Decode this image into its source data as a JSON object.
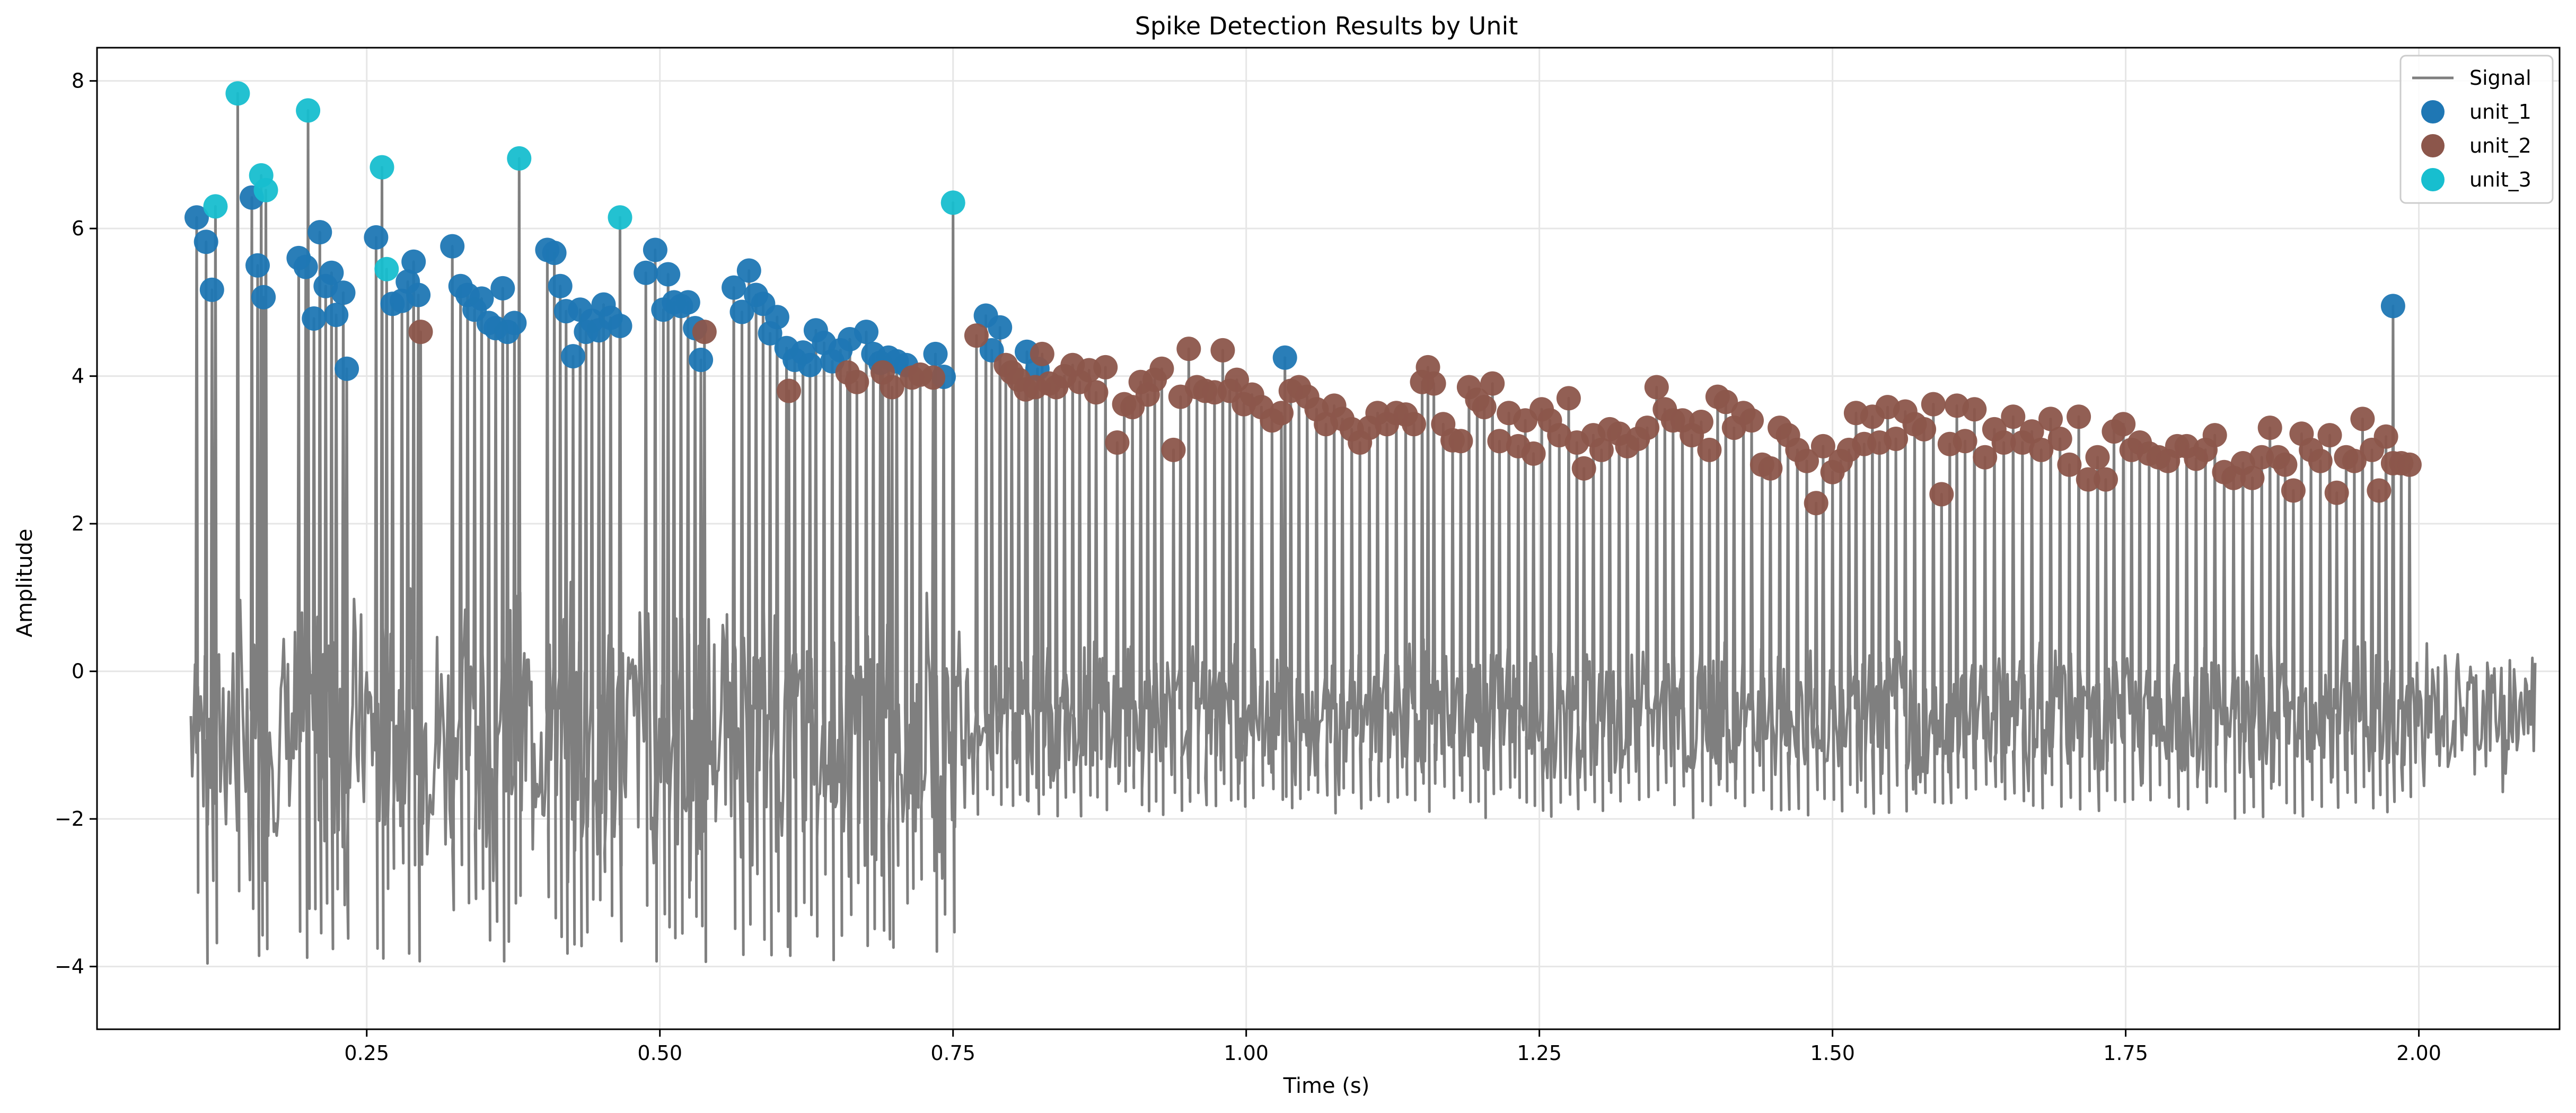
{
  "chart_data": {
    "type": "scatter",
    "title": "Spike Detection Results by Unit",
    "xlabel": "Time (s)",
    "ylabel": "Amplitude",
    "xlim": [
      0.02,
      2.12
    ],
    "ylim": [
      -4.85,
      8.45
    ],
    "xticks": [
      0.25,
      0.5,
      0.75,
      1.0,
      1.25,
      1.5,
      1.75,
      2.0
    ],
    "xtick_labels": [
      "0.25",
      "0.50",
      "0.75",
      "1.00",
      "1.25",
      "1.50",
      "1.75",
      "2.00"
    ],
    "yticks": [
      -4,
      -2,
      0,
      2,
      4,
      6,
      8
    ],
    "ytick_labels": [
      "−4",
      "−2",
      "0",
      "2",
      "4",
      "6",
      "8"
    ],
    "grid": true,
    "legend_position": "top-right",
    "colors": {
      "signal": "#7f7f7f",
      "unit_1": "#1f77b4",
      "unit_2": "#8c564b",
      "unit_3": "#17becf",
      "grid": "#e6e6e6"
    },
    "legend": [
      {
        "label": "Signal",
        "kind": "line",
        "color": "#7f7f7f"
      },
      {
        "label": "unit_1",
        "kind": "marker",
        "color": "#1f77b4"
      },
      {
        "label": "unit_2",
        "kind": "marker",
        "color": "#8c564b"
      },
      {
        "label": "unit_3",
        "kind": "marker",
        "color": "#17becf"
      }
    ],
    "signal": {
      "name": "Signal",
      "x_start": 0.1,
      "x_end": 2.1,
      "baseline_min": -4.2,
      "baseline_max": 1.7
    },
    "series": [
      {
        "name": "unit_1",
        "color": "#1f77b4",
        "points": [
          [
            0.105,
            6.15
          ],
          [
            0.113,
            5.82
          ],
          [
            0.118,
            5.17
          ],
          [
            0.152,
            6.42
          ],
          [
            0.157,
            5.5
          ],
          [
            0.162,
            5.07
          ],
          [
            0.192,
            5.6
          ],
          [
            0.198,
            5.48
          ],
          [
            0.205,
            4.78
          ],
          [
            0.21,
            5.95
          ],
          [
            0.215,
            5.22
          ],
          [
            0.22,
            5.4
          ],
          [
            0.224,
            4.83
          ],
          [
            0.23,
            5.13
          ],
          [
            0.233,
            4.1
          ],
          [
            0.258,
            5.88
          ],
          [
            0.272,
            4.98
          ],
          [
            0.28,
            5.02
          ],
          [
            0.285,
            5.28
          ],
          [
            0.29,
            5.55
          ],
          [
            0.294,
            5.1
          ],
          [
            0.323,
            5.76
          ],
          [
            0.33,
            5.22
          ],
          [
            0.336,
            5.1
          ],
          [
            0.342,
            4.9
          ],
          [
            0.348,
            5.05
          ],
          [
            0.354,
            4.72
          ],
          [
            0.36,
            4.65
          ],
          [
            0.366,
            5.19
          ],
          [
            0.37,
            4.6
          ],
          [
            0.376,
            4.72
          ],
          [
            0.404,
            5.71
          ],
          [
            0.41,
            5.67
          ],
          [
            0.415,
            5.22
          ],
          [
            0.42,
            4.88
          ],
          [
            0.426,
            4.27
          ],
          [
            0.432,
            4.9
          ],
          [
            0.437,
            4.6
          ],
          [
            0.442,
            4.75
          ],
          [
            0.448,
            4.62
          ],
          [
            0.452,
            4.97
          ],
          [
            0.458,
            4.79
          ],
          [
            0.466,
            4.68
          ],
          [
            0.488,
            5.4
          ],
          [
            0.496,
            5.71
          ],
          [
            0.503,
            4.9
          ],
          [
            0.507,
            5.38
          ],
          [
            0.512,
            5.0
          ],
          [
            0.518,
            4.95
          ],
          [
            0.524,
            5.0
          ],
          [
            0.53,
            4.65
          ],
          [
            0.535,
            4.22
          ],
          [
            0.563,
            5.2
          ],
          [
            0.57,
            4.87
          ],
          [
            0.576,
            5.43
          ],
          [
            0.582,
            5.1
          ],
          [
            0.588,
            4.98
          ],
          [
            0.594,
            4.58
          ],
          [
            0.6,
            4.8
          ],
          [
            0.608,
            4.38
          ],
          [
            0.615,
            4.22
          ],
          [
            0.622,
            4.32
          ],
          [
            0.628,
            4.15
          ],
          [
            0.633,
            4.62
          ],
          [
            0.64,
            4.45
          ],
          [
            0.647,
            4.2
          ],
          [
            0.654,
            4.35
          ],
          [
            0.662,
            4.5
          ],
          [
            0.676,
            4.6
          ],
          [
            0.682,
            4.3
          ],
          [
            0.688,
            4.18
          ],
          [
            0.695,
            4.25
          ],
          [
            0.702,
            4.2
          ],
          [
            0.71,
            4.15
          ],
          [
            0.735,
            4.3
          ],
          [
            0.742,
            3.99
          ],
          [
            0.778,
            4.82
          ],
          [
            0.783,
            4.35
          ],
          [
            0.79,
            4.66
          ],
          [
            0.813,
            4.33
          ],
          [
            0.822,
            4.1
          ],
          [
            1.033,
            4.25
          ],
          [
            1.978,
            4.95
          ]
        ]
      },
      {
        "name": "unit_2",
        "color": "#8c564b",
        "points": [
          [
            0.296,
            4.6
          ],
          [
            0.538,
            4.6
          ],
          [
            0.61,
            3.8
          ],
          [
            0.66,
            4.05
          ],
          [
            0.668,
            3.92
          ],
          [
            0.69,
            4.05
          ],
          [
            0.698,
            3.85
          ],
          [
            0.715,
            3.98
          ],
          [
            0.722,
            4.02
          ],
          [
            0.733,
            3.98
          ],
          [
            0.77,
            4.55
          ],
          [
            0.795,
            4.15
          ],
          [
            0.8,
            4.05
          ],
          [
            0.806,
            3.95
          ],
          [
            0.812,
            3.82
          ],
          [
            0.82,
            3.85
          ],
          [
            0.826,
            4.3
          ],
          [
            0.832,
            3.9
          ],
          [
            0.838,
            3.85
          ],
          [
            0.845,
            4.0
          ],
          [
            0.852,
            4.15
          ],
          [
            0.858,
            3.92
          ],
          [
            0.866,
            4.08
          ],
          [
            0.872,
            3.78
          ],
          [
            0.88,
            4.12
          ],
          [
            0.89,
            3.1
          ],
          [
            0.896,
            3.62
          ],
          [
            0.903,
            3.58
          ],
          [
            0.91,
            3.92
          ],
          [
            0.916,
            3.75
          ],
          [
            0.922,
            3.95
          ],
          [
            0.928,
            4.1
          ],
          [
            0.938,
            3.0
          ],
          [
            0.944,
            3.72
          ],
          [
            0.951,
            4.37
          ],
          [
            0.958,
            3.85
          ],
          [
            0.965,
            3.8
          ],
          [
            0.973,
            3.78
          ],
          [
            0.98,
            4.35
          ],
          [
            0.986,
            3.8
          ],
          [
            0.992,
            3.95
          ],
          [
            0.998,
            3.62
          ],
          [
            1.005,
            3.75
          ],
          [
            1.013,
            3.58
          ],
          [
            1.022,
            3.4
          ],
          [
            1.03,
            3.5
          ],
          [
            1.038,
            3.8
          ],
          [
            1.045,
            3.85
          ],
          [
            1.052,
            3.72
          ],
          [
            1.06,
            3.55
          ],
          [
            1.068,
            3.35
          ],
          [
            1.075,
            3.6
          ],
          [
            1.082,
            3.42
          ],
          [
            1.09,
            3.28
          ],
          [
            1.097,
            3.1
          ],
          [
            1.105,
            3.3
          ],
          [
            1.112,
            3.5
          ],
          [
            1.12,
            3.35
          ],
          [
            1.128,
            3.5
          ],
          [
            1.136,
            3.48
          ],
          [
            1.143,
            3.35
          ],
          [
            1.15,
            3.92
          ],
          [
            1.155,
            4.12
          ],
          [
            1.16,
            3.9
          ],
          [
            1.168,
            3.35
          ],
          [
            1.176,
            3.13
          ],
          [
            1.183,
            3.12
          ],
          [
            1.19,
            3.85
          ],
          [
            1.197,
            3.68
          ],
          [
            1.203,
            3.58
          ],
          [
            1.21,
            3.9
          ],
          [
            1.216,
            3.12
          ],
          [
            1.224,
            3.5
          ],
          [
            1.232,
            3.05
          ],
          [
            1.238,
            3.4
          ],
          [
            1.245,
            2.95
          ],
          [
            1.252,
            3.55
          ],
          [
            1.259,
            3.4
          ],
          [
            1.267,
            3.2
          ],
          [
            1.275,
            3.7
          ],
          [
            1.282,
            3.1
          ],
          [
            1.288,
            2.75
          ],
          [
            1.296,
            3.2
          ],
          [
            1.303,
            3.0
          ],
          [
            1.31,
            3.28
          ],
          [
            1.318,
            3.22
          ],
          [
            1.325,
            3.05
          ],
          [
            1.334,
            3.15
          ],
          [
            1.342,
            3.3
          ],
          [
            1.35,
            3.85
          ],
          [
            1.357,
            3.55
          ],
          [
            1.364,
            3.4
          ],
          [
            1.372,
            3.4
          ],
          [
            1.38,
            3.2
          ],
          [
            1.388,
            3.38
          ],
          [
            1.395,
            3.0
          ],
          [
            1.402,
            3.72
          ],
          [
            1.409,
            3.65
          ],
          [
            1.416,
            3.3
          ],
          [
            1.424,
            3.5
          ],
          [
            1.431,
            3.4
          ],
          [
            1.44,
            2.8
          ],
          [
            1.447,
            2.75
          ],
          [
            1.455,
            3.3
          ],
          [
            1.462,
            3.2
          ],
          [
            1.47,
            3.0
          ],
          [
            1.478,
            2.85
          ],
          [
            1.486,
            2.28
          ],
          [
            1.492,
            3.05
          ],
          [
            1.5,
            2.7
          ],
          [
            1.507,
            2.85
          ],
          [
            1.514,
            3.0
          ],
          [
            1.52,
            3.5
          ],
          [
            1.527,
            3.08
          ],
          [
            1.534,
            3.45
          ],
          [
            1.54,
            3.1
          ],
          [
            1.547,
            3.58
          ],
          [
            1.554,
            3.15
          ],
          [
            1.562,
            3.52
          ],
          [
            1.57,
            3.35
          ],
          [
            1.578,
            3.28
          ],
          [
            1.586,
            3.62
          ],
          [
            1.593,
            2.4
          ],
          [
            1.6,
            3.08
          ],
          [
            1.606,
            3.6
          ],
          [
            1.613,
            3.12
          ],
          [
            1.621,
            3.55
          ],
          [
            1.63,
            2.9
          ],
          [
            1.638,
            3.28
          ],
          [
            1.646,
            3.1
          ],
          [
            1.654,
            3.45
          ],
          [
            1.662,
            3.1
          ],
          [
            1.67,
            3.25
          ],
          [
            1.678,
            3.0
          ],
          [
            1.686,
            3.42
          ],
          [
            1.694,
            3.15
          ],
          [
            1.702,
            2.8
          ],
          [
            1.71,
            3.45
          ],
          [
            1.718,
            2.6
          ],
          [
            1.726,
            2.9
          ],
          [
            1.733,
            2.6
          ],
          [
            1.74,
            3.25
          ],
          [
            1.748,
            3.35
          ],
          [
            1.755,
            3.0
          ],
          [
            1.762,
            3.1
          ],
          [
            1.77,
            2.95
          ],
          [
            1.778,
            2.9
          ],
          [
            1.786,
            2.85
          ],
          [
            1.794,
            3.05
          ],
          [
            1.802,
            3.05
          ],
          [
            1.81,
            2.88
          ],
          [
            1.818,
            3.0
          ],
          [
            1.826,
            3.2
          ],
          [
            1.834,
            2.7
          ],
          [
            1.842,
            2.62
          ],
          [
            1.85,
            2.82
          ],
          [
            1.858,
            2.62
          ],
          [
            1.866,
            2.9
          ],
          [
            1.873,
            3.3
          ],
          [
            1.88,
            2.9
          ],
          [
            1.886,
            2.8
          ],
          [
            1.893,
            2.45
          ],
          [
            1.9,
            3.22
          ],
          [
            1.908,
            3.0
          ],
          [
            1.916,
            2.85
          ],
          [
            1.924,
            3.2
          ],
          [
            1.93,
            2.42
          ],
          [
            1.938,
            2.9
          ],
          [
            1.945,
            2.85
          ],
          [
            1.952,
            3.42
          ],
          [
            1.96,
            3.0
          ],
          [
            1.966,
            2.45
          ],
          [
            1.972,
            3.18
          ],
          [
            1.978,
            2.82
          ],
          [
            1.985,
            2.82
          ],
          [
            1.992,
            2.8
          ]
        ]
      },
      {
        "name": "unit_3",
        "color": "#17becf",
        "points": [
          [
            0.14,
            7.83
          ],
          [
            0.16,
            6.72
          ],
          [
            0.164,
            6.52
          ],
          [
            0.2,
            7.6
          ],
          [
            0.121,
            6.3
          ],
          [
            0.263,
            6.83
          ],
          [
            0.267,
            5.45
          ],
          [
            0.38,
            6.95
          ],
          [
            0.466,
            6.15
          ],
          [
            0.75,
            6.35
          ]
        ]
      }
    ]
  }
}
